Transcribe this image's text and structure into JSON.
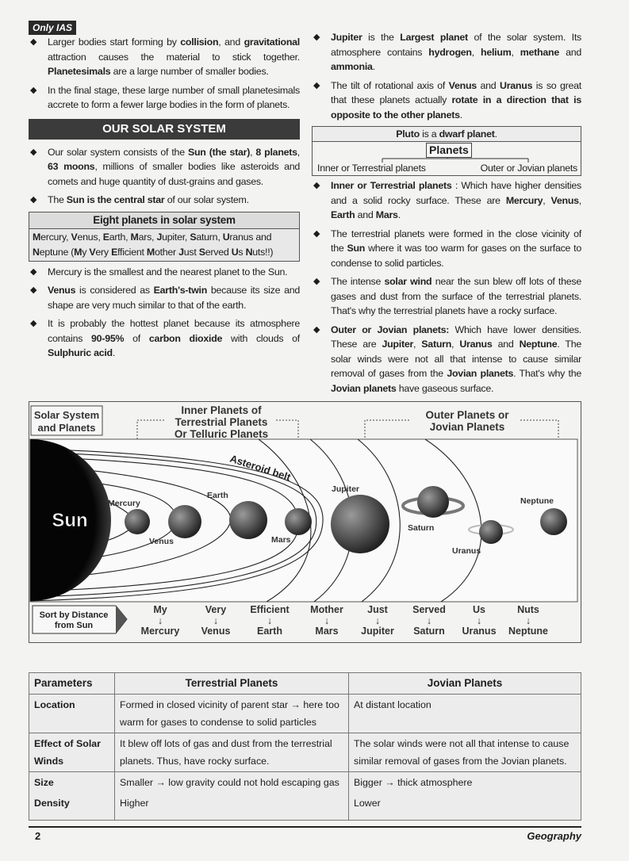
{
  "header_tag": "Only IAS",
  "left_col": {
    "bullets_top": [
      [
        {
          "t": "Larger bodies start forming by "
        },
        {
          "t": "collision",
          "b": true
        },
        {
          "t": ", and "
        },
        {
          "t": "gravitational",
          "b": true
        },
        {
          "t": " attraction causes the material to stick together. "
        },
        {
          "t": "Planetesimals",
          "b": true
        },
        {
          "t": " are a large number of smaller bodies."
        }
      ],
      [
        {
          "t": "In the final stage, these large number of small planetesimals accrete to form a fewer large bodies in the form of planets."
        }
      ]
    ],
    "section_title": "OUR SOLAR SYSTEM",
    "bullets_mid": [
      [
        {
          "t": "Our solar system consists of the "
        },
        {
          "t": "Sun (the star)",
          "b": true
        },
        {
          "t": ", "
        },
        {
          "t": "8 planets",
          "b": true
        },
        {
          "t": ", "
        },
        {
          "t": "63 moons",
          "b": true
        },
        {
          "t": ", millions of smaller bodies like asteroids and comets and huge quantity of dust-grains and gases."
        }
      ],
      [
        {
          "t": "The "
        },
        {
          "t": "Sun is the central star",
          "b": true
        },
        {
          "t": " of our solar system."
        }
      ]
    ],
    "eight_box": {
      "title": "Eight planets in solar system",
      "content": [
        {
          "t": "M",
          "b": true
        },
        {
          "t": "ercury, "
        },
        {
          "t": "V",
          "b": true
        },
        {
          "t": "enus, "
        },
        {
          "t": "E",
          "b": true
        },
        {
          "t": "arth, "
        },
        {
          "t": "M",
          "b": true
        },
        {
          "t": "ars, "
        },
        {
          "t": "J",
          "b": true
        },
        {
          "t": "upiter, "
        },
        {
          "t": "S",
          "b": true
        },
        {
          "t": "aturn, "
        },
        {
          "t": "U",
          "b": true
        },
        {
          "t": "ranus and "
        },
        {
          "t": "N",
          "b": true
        },
        {
          "t": "eptune ("
        },
        {
          "t": "M",
          "b": true
        },
        {
          "t": "y "
        },
        {
          "t": "V",
          "b": true
        },
        {
          "t": "ery "
        },
        {
          "t": "E",
          "b": true
        },
        {
          "t": "fficient "
        },
        {
          "t": "M",
          "b": true
        },
        {
          "t": "other "
        },
        {
          "t": "J",
          "b": true
        },
        {
          "t": "ust "
        },
        {
          "t": "S",
          "b": true
        },
        {
          "t": "erved "
        },
        {
          "t": "U",
          "b": true
        },
        {
          "t": "s "
        },
        {
          "t": "N",
          "b": true
        },
        {
          "t": "uts!!)"
        }
      ]
    },
    "bullets_bottom": [
      [
        {
          "t": "Mercury is the smallest and the nearest planet to the Sun."
        }
      ],
      [
        {
          "t": "Venus",
          "b": true
        },
        {
          "t": " is considered as "
        },
        {
          "t": "Earth's-twin",
          "b": true
        },
        {
          "t": " because its size and shape are very much similar to that of the earth."
        }
      ],
      [
        {
          "t": "It is probably the hottest planet because its atmosphere contains "
        },
        {
          "t": "90-95%",
          "b": true
        },
        {
          "t": " of "
        },
        {
          "t": "carbon dioxide",
          "b": true
        },
        {
          "t": " with clouds of "
        },
        {
          "t": "Sulphuric acid",
          "b": true
        },
        {
          "t": "."
        }
      ]
    ]
  },
  "right_col": {
    "bullets_top": [
      [
        {
          "t": "Jupiter",
          "b": true
        },
        {
          "t": " is the "
        },
        {
          "t": "Largest planet",
          "b": true
        },
        {
          "t": " of the solar system. Its atmosphere contains "
        },
        {
          "t": "hydrogen",
          "b": true
        },
        {
          "t": ", "
        },
        {
          "t": "helium",
          "b": true
        },
        {
          "t": ", "
        },
        {
          "t": "methane",
          "b": true
        },
        {
          "t": " and "
        },
        {
          "t": "ammonia",
          "b": true
        },
        {
          "t": "."
        }
      ],
      [
        {
          "t": "The tilt of rotational axis of "
        },
        {
          "t": "Venus",
          "b": true
        },
        {
          "t": " and "
        },
        {
          "t": "Uranus",
          "b": true
        },
        {
          "t": " is so great that these planets actually "
        },
        {
          "t": "rotate in a direction that is opposite to the other planets",
          "b": true
        },
        {
          "t": "."
        }
      ]
    ],
    "pluto_box": [
      {
        "t": "Pluto",
        "b": true
      },
      {
        "t": " is a "
      },
      {
        "t": "dwarf planet",
        "b": true
      },
      {
        "t": "."
      }
    ],
    "planets_box": {
      "title": "Planets",
      "left": "Inner or Terrestrial planets",
      "right": "Outer or Jovian planets"
    },
    "bullets_bottom": [
      [
        {
          "t": "Inner or Terrestrial planets",
          "b": true
        },
        {
          "t": " : Which have higher densities and a solid rocky surface. These are "
        },
        {
          "t": "Mercury",
          "b": true
        },
        {
          "t": ", "
        },
        {
          "t": "Venus",
          "b": true
        },
        {
          "t": ", "
        },
        {
          "t": "Earth",
          "b": true
        },
        {
          "t": " and "
        },
        {
          "t": "Mars",
          "b": true
        },
        {
          "t": "."
        }
      ],
      [
        {
          "t": "The terrestrial planets were formed in the close vicinity of the "
        },
        {
          "t": "Sun",
          "b": true
        },
        {
          "t": " where it was too warm for gases on the surface to condense to solid particles."
        }
      ],
      [
        {
          "t": "The intense "
        },
        {
          "t": "solar wind",
          "b": true
        },
        {
          "t": " near the sun blew off lots of these gases and dust from the surface of the terrestrial planets. That's why the terrestrial planets have a rocky surface."
        }
      ],
      [
        {
          "t": "Outer or Jovian planets:",
          "b": true
        },
        {
          "t": " Which have lower densities. These are "
        },
        {
          "t": "Jupiter",
          "b": true
        },
        {
          "t": ", "
        },
        {
          "t": "Saturn",
          "b": true
        },
        {
          "t": ", "
        },
        {
          "t": "Uranus",
          "b": true
        },
        {
          "t": " and "
        },
        {
          "t": "Neptune",
          "b": true
        },
        {
          "t": ". The solar winds were not all that intense to cause similar removal of gases from the "
        },
        {
          "t": "Jovian planets",
          "b": true
        },
        {
          "t": ". That's why the "
        },
        {
          "t": "Jovian planets",
          "b": true
        },
        {
          "t": " have gaseous surface."
        }
      ]
    ]
  },
  "diagram": {
    "title_line1": "Solar System",
    "title_line2": "and Planets",
    "inner_label": [
      "Inner Planets of",
      "Terrestrial Planets",
      "Or Telluric Planets"
    ],
    "outer_label": [
      "Outer Planets or",
      "Jovian Planets"
    ],
    "sun": "Sun",
    "asteroid_belt": "Asteroid belt",
    "planets": [
      "Mercury",
      "Venus",
      "Earth",
      "Mars",
      "Jupiter",
      "Saturn",
      "Uranus",
      "Neptune"
    ],
    "sort_label": [
      "Sort by Distance",
      "from Sun"
    ],
    "mnemonic": [
      {
        "word": "My",
        "planet": "Mercury"
      },
      {
        "word": "Very",
        "planet": "Venus"
      },
      {
        "word": "Efficient",
        "planet": "Earth"
      },
      {
        "word": "Mother",
        "planet": "Mars"
      },
      {
        "word": "Just",
        "planet": "Jupiter"
      },
      {
        "word": "Served",
        "planet": "Saturn"
      },
      {
        "word": "Us",
        "planet": "Uranus"
      },
      {
        "word": "Nuts",
        "planet": "Neptune"
      }
    ],
    "arrow": "↓"
  },
  "table": {
    "headers": [
      "Parameters",
      "Terrestrial Planets",
      "Jovian Planets"
    ],
    "rows": [
      [
        "Location",
        "Formed in closed vicinity of parent star → here too warm for gases to condense to solid particles",
        "At distant location"
      ],
      [
        "Effect of Solar Winds",
        "It blew off lots of gas and dust from the terrestrial planets. Thus, have rocky surface.",
        "The solar winds were not all that intense to cause similar removal of gases from the Jovian planets."
      ],
      [
        "Size",
        "Smaller → low gravity could not hold escaping gas",
        "Bigger → thick atmosphere"
      ],
      [
        "Density",
        "Higher",
        "Lower"
      ]
    ]
  },
  "footer": {
    "page": "2",
    "subject": "Geography"
  }
}
